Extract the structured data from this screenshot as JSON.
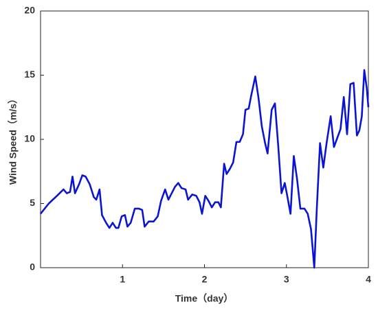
{
  "chart_data": {
    "type": "line",
    "xlabel": "Time（day）",
    "ylabel": "Wind Speed（m/s）",
    "xlim": [
      0,
      4
    ],
    "xticks": [
      1,
      2,
      3,
      4
    ],
    "ylim": [
      0,
      20
    ],
    "yticks": [
      0,
      5,
      10,
      15,
      20
    ],
    "series": [
      {
        "color": "#0a14d2",
        "x": [
          0,
          0.1,
          0.2,
          0.28,
          0.32,
          0.36,
          0.39,
          0.42,
          0.47,
          0.51,
          0.55,
          0.6,
          0.65,
          0.68,
          0.72,
          0.75,
          0.8,
          0.84,
          0.88,
          0.92,
          0.95,
          0.99,
          1.03,
          1.06,
          1.1,
          1.15,
          1.2,
          1.24,
          1.27,
          1.32,
          1.38,
          1.43,
          1.47,
          1.52,
          1.56,
          1.6,
          1.64,
          1.68,
          1.72,
          1.77,
          1.8,
          1.85,
          1.9,
          1.94,
          1.97,
          2.01,
          2.05,
          2.09,
          2.13,
          2.17,
          2.2,
          2.24,
          2.27,
          2.31,
          2.35,
          2.39,
          2.43,
          2.47,
          2.5,
          2.54,
          2.57,
          2.62,
          2.66,
          2.7,
          2.74,
          2.77,
          2.82,
          2.86,
          2.9,
          2.94,
          2.98,
          3.01,
          3.05,
          3.09,
          3.13,
          3.17,
          3.22,
          3.26,
          3.3,
          3.34,
          3.37,
          3.41,
          3.45,
          3.49,
          3.54,
          3.58,
          3.62,
          3.66,
          3.7,
          3.74,
          3.78,
          3.82,
          3.86,
          3.89,
          3.92,
          3.95,
          3.98,
          4.0
        ],
        "values": [
          4.2,
          5.0,
          5.6,
          6.1,
          5.8,
          5.9,
          7.1,
          5.8,
          6.5,
          7.2,
          7.1,
          6.5,
          5.5,
          5.3,
          6.1,
          4.1,
          3.5,
          3.1,
          3.5,
          3.1,
          3.1,
          4.0,
          4.1,
          3.2,
          3.5,
          4.6,
          4.6,
          4.5,
          3.2,
          3.6,
          3.6,
          4.0,
          5.2,
          6.1,
          5.3,
          5.8,
          6.3,
          6.6,
          6.2,
          6.1,
          5.3,
          5.7,
          5.6,
          5.1,
          4.2,
          5.6,
          5.2,
          4.7,
          5.1,
          5.1,
          4.7,
          8.1,
          7.3,
          7.7,
          8.2,
          9.8,
          9.8,
          10.4,
          12.3,
          12.4,
          13.4,
          14.9,
          13.2,
          11.0,
          9.7,
          8.9,
          12.3,
          12.8,
          9.5,
          5.8,
          6.6,
          5.6,
          4.2,
          8.7,
          6.9,
          4.6,
          4.6,
          4.2,
          3.0,
          0.0,
          4.5,
          9.7,
          7.8,
          9.7,
          11.8,
          9.4,
          10.1,
          10.8,
          13.3,
          10.4,
          14.3,
          14.4,
          10.3,
          10.7,
          11.8,
          15.4,
          14.0,
          12.5
        ]
      }
    ]
  }
}
